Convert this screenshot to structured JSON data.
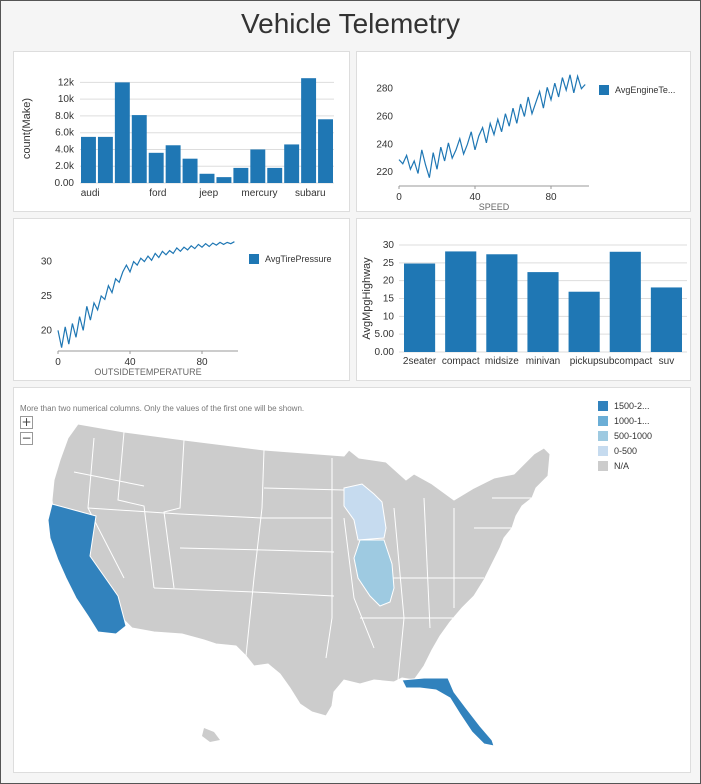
{
  "title": "Vehicle Telemetry",
  "charts": {
    "make_bar": {
      "ylabel": "count(Make)",
      "y_ticks": [
        "0.00",
        "2.0k",
        "4.0k",
        "6.0k",
        "8.0k",
        "10k",
        "12k"
      ],
      "x_labels": [
        "audi",
        "ford",
        "jeep",
        "mercury",
        "subaru"
      ],
      "color": "#1f77b4"
    },
    "engine_line": {
      "xlabel": "SPEED",
      "legend": "AvgEngineTe...",
      "y_ticks": [
        "220",
        "240",
        "260",
        "280"
      ],
      "x_ticks": [
        "0",
        "40",
        "80"
      ],
      "color": "#1f77b4"
    },
    "tire_line": {
      "xlabel": "OUTSIDETEMPERATURE",
      "legend": "AvgTirePressure",
      "y_ticks": [
        "20",
        "25",
        "30"
      ],
      "x_ticks": [
        "0",
        "40",
        "80"
      ],
      "color": "#1f77b4"
    },
    "mpg_bar": {
      "ylabel": "AvgMpgHighway",
      "y_ticks": [
        "0.00",
        "5.00",
        "10",
        "15",
        "20",
        "25",
        "30"
      ],
      "categories": [
        "2seater",
        "compact",
        "midsize",
        "minivan",
        "pickup",
        "subcompact",
        "suv"
      ],
      "color": "#1f77b4"
    }
  },
  "chart_data": [
    {
      "type": "bar",
      "ylabel": "count(Make)",
      "ylim": [
        0,
        13000
      ],
      "categories_shown": [
        "audi",
        "ford",
        "jeep",
        "mercury",
        "subaru"
      ],
      "values": [
        5500,
        5500,
        12000,
        8100,
        3600,
        4500,
        2900,
        1100,
        700,
        1800,
        4000,
        1800,
        4600,
        12500,
        7600
      ]
    },
    {
      "type": "line",
      "xlabel": "SPEED",
      "legend": "AvgEngineTe...",
      "xlim": [
        0,
        100
      ],
      "ylim": [
        210,
        292
      ],
      "x": [
        0,
        2,
        4,
        6,
        8,
        10,
        12,
        14,
        16,
        18,
        20,
        22,
        24,
        26,
        28,
        30,
        32,
        34,
        36,
        38,
        40,
        42,
        44,
        46,
        48,
        50,
        52,
        54,
        56,
        58,
        60,
        62,
        64,
        66,
        68,
        70,
        72,
        74,
        76,
        78,
        80,
        82,
        84,
        86,
        88,
        90,
        92,
        94,
        96,
        98
      ],
      "y": [
        229,
        226,
        232,
        222,
        228,
        219,
        236,
        225,
        216,
        234,
        222,
        238,
        228,
        241,
        230,
        236,
        244,
        233,
        240,
        249,
        236,
        246,
        252,
        241,
        255,
        247,
        258,
        249,
        262,
        253,
        266,
        255,
        269,
        260,
        274,
        262,
        270,
        278,
        266,
        281,
        272,
        284,
        274,
        288,
        279,
        290,
        277,
        289,
        280,
        283
      ]
    },
    {
      "type": "line",
      "xlabel": "OUTSIDETEMPERATURE",
      "legend": "AvgTirePressure",
      "xlim": [
        0,
        100
      ],
      "ylim": [
        17,
        33
      ],
      "x": [
        0,
        2,
        4,
        6,
        8,
        10,
        12,
        14,
        16,
        18,
        20,
        22,
        24,
        26,
        28,
        30,
        32,
        34,
        36,
        38,
        40,
        42,
        44,
        46,
        48,
        50,
        52,
        54,
        56,
        58,
        60,
        62,
        64,
        66,
        68,
        70,
        72,
        74,
        76,
        78,
        80,
        82,
        84,
        86,
        88,
        90,
        92,
        94,
        96,
        98
      ],
      "y": [
        20,
        17.5,
        20.5,
        18,
        21,
        19,
        22,
        20,
        23.5,
        21.5,
        24,
        23,
        25,
        24.5,
        26.5,
        25.5,
        27.5,
        27,
        28.5,
        29.5,
        28.5,
        30,
        29.5,
        30.5,
        30,
        30.8,
        30.2,
        31.2,
        30.6,
        31.5,
        31,
        31.6,
        31.2,
        32,
        31.5,
        32.1,
        31.7,
        32.3,
        31.9,
        32.5,
        32.1,
        32.6,
        32.2,
        32.7,
        32.4,
        32.8,
        32.5,
        32.8,
        32.6,
        32.9
      ]
    },
    {
      "type": "bar",
      "ylabel": "AvgMpgHighway",
      "ylim": [
        0,
        30
      ],
      "categories": [
        "2seater",
        "compact",
        "midsize",
        "minivan",
        "pickup",
        "subcompact",
        "suv"
      ],
      "values": [
        24.8,
        28.2,
        27.4,
        22.4,
        16.9,
        28.1,
        18.1
      ]
    }
  ],
  "map": {
    "note": "More than two numerical columns. Only the values of the first one will be shown.",
    "zoom_in": "+",
    "zoom_out": "−",
    "legend": [
      {
        "label": "1500-2...",
        "color": "#3182bd"
      },
      {
        "label": "1000-1...",
        "color": "#6baed6"
      },
      {
        "label": "500-1000",
        "color": "#9ecae1"
      },
      {
        "label": "0-500",
        "color": "#c6dbef"
      },
      {
        "label": "N/A",
        "color": "#cccccc"
      }
    ],
    "highlighted_states": [
      {
        "state": "California",
        "bin": "1500-2..."
      },
      {
        "state": "Florida",
        "bin": "1500-2..."
      },
      {
        "state": "Wisconsin",
        "bin": "0-500"
      },
      {
        "state": "Illinois",
        "bin": "500-1000"
      }
    ]
  }
}
